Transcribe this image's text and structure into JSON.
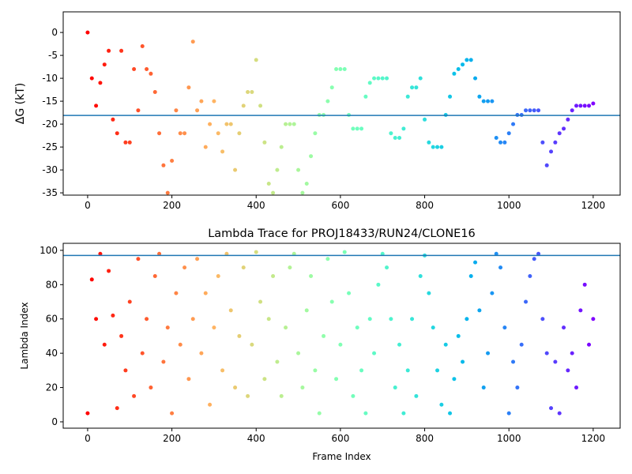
{
  "chart_data": [
    {
      "type": "scatter",
      "ylabel": "ΔG (kT)",
      "colormap": "rainbow_r",
      "xlim": [
        -58,
        1264
      ],
      "ylim": [
        -35.5,
        4.5
      ],
      "xticks": [
        0,
        200,
        400,
        600,
        800,
        1000,
        1200
      ],
      "yticks": [
        -35,
        -30,
        -25,
        -20,
        -15,
        -10,
        -5,
        0
      ],
      "hline": -18.1,
      "hline_color": "#1f77b4",
      "x": [
        0,
        10,
        20,
        30,
        40,
        50,
        60,
        70,
        80,
        90,
        100,
        110,
        120,
        130,
        140,
        150,
        160,
        170,
        180,
        190,
        200,
        210,
        220,
        230,
        240,
        250,
        260,
        270,
        280,
        290,
        300,
        310,
        320,
        330,
        340,
        350,
        360,
        370,
        380,
        390,
        400,
        410,
        420,
        430,
        440,
        450,
        460,
        470,
        480,
        490,
        500,
        510,
        520,
        530,
        540,
        550,
        560,
        570,
        580,
        590,
        600,
        610,
        620,
        630,
        640,
        650,
        660,
        670,
        680,
        690,
        700,
        710,
        720,
        730,
        740,
        750,
        760,
        770,
        780,
        790,
        800,
        810,
        820,
        830,
        840,
        850,
        860,
        870,
        880,
        890,
        900,
        910,
        920,
        930,
        940,
        950,
        960,
        970,
        980,
        990,
        1000,
        1010,
        1020,
        1030,
        1040,
        1050,
        1060,
        1070,
        1080,
        1090,
        1100,
        1110,
        1120,
        1130,
        1140,
        1150,
        1160,
        1170,
        1180,
        1190,
        1200
      ],
      "values": [
        0,
        -10,
        -16,
        -11,
        -7,
        -4,
        -19,
        -22,
        -4,
        -24,
        -24,
        -8,
        -17,
        -3,
        -8,
        -9,
        -13,
        -22,
        -29,
        -35,
        -28,
        -17,
        -22,
        -22,
        -12,
        -2,
        -17,
        -15,
        -25,
        -20,
        -15,
        -22,
        -26,
        -20,
        -20,
        -30,
        -22,
        -16,
        -13,
        -13,
        -6,
        -16,
        -24,
        -33,
        -35,
        -30,
        -25,
        -20,
        -20,
        -20,
        -30,
        -35,
        -33,
        -27,
        -22,
        -18,
        -18,
        -15,
        -12,
        -8,
        -8,
        -8,
        -18,
        -21,
        -21,
        -21,
        -14,
        -11,
        -10,
        -10,
        -10,
        -10,
        -22,
        -23,
        -23,
        -21,
        -14,
        -12,
        -12,
        -10,
        -19,
        -24,
        -25,
        -25,
        -25,
        -18,
        -14,
        -9,
        -8,
        -7,
        -6,
        -6,
        -10,
        -14,
        -15,
        -15,
        -15,
        -23,
        -24,
        -24,
        -22,
        -20,
        -18,
        -18,
        -17,
        -17,
        -17,
        -17,
        -24,
        -29,
        -26,
        -24,
        -22,
        -21,
        -19,
        -17,
        -16,
        -16,
        -16,
        -16,
        -15.5
      ]
    },
    {
      "type": "scatter",
      "title": "Lambda Trace for PROJ18433/RUN24/CLONE16",
      "xlabel": "Frame Index",
      "ylabel": "Lambda Index",
      "colormap": "rainbow_r",
      "xlim": [
        -58,
        1264
      ],
      "ylim": [
        -3.7,
        104.1
      ],
      "xticks": [
        0,
        200,
        400,
        600,
        800,
        1000,
        1200
      ],
      "yticks": [
        0,
        20,
        40,
        60,
        80,
        100
      ],
      "hline": 97,
      "hline_color": "#1f77b4",
      "x": [
        0,
        10,
        20,
        30,
        40,
        50,
        60,
        70,
        80,
        90,
        100,
        110,
        120,
        130,
        140,
        150,
        160,
        170,
        180,
        190,
        200,
        210,
        220,
        230,
        240,
        250,
        260,
        270,
        280,
        290,
        300,
        310,
        320,
        330,
        340,
        350,
        360,
        370,
        380,
        390,
        400,
        410,
        420,
        430,
        440,
        450,
        460,
        470,
        480,
        490,
        500,
        510,
        520,
        530,
        540,
        550,
        560,
        570,
        580,
        590,
        600,
        610,
        620,
        630,
        640,
        650,
        660,
        670,
        680,
        690,
        700,
        710,
        720,
        730,
        740,
        750,
        760,
        770,
        780,
        790,
        800,
        810,
        820,
        830,
        840,
        850,
        860,
        870,
        880,
        890,
        900,
        910,
        920,
        930,
        940,
        950,
        960,
        970,
        980,
        990,
        1000,
        1010,
        1020,
        1030,
        1040,
        1050,
        1060,
        1070,
        1080,
        1090,
        1100,
        1110,
        1120,
        1130,
        1140,
        1150,
        1160,
        1170,
        1180,
        1190,
        1200
      ],
      "values": [
        5,
        83,
        60,
        98,
        45,
        88,
        62,
        8,
        50,
        30,
        70,
        15,
        95,
        40,
        60,
        20,
        85,
        98,
        35,
        55,
        5,
        75,
        45,
        90,
        25,
        60,
        95,
        40,
        75,
        10,
        55,
        85,
        30,
        98,
        65,
        20,
        50,
        90,
        15,
        45,
        99,
        70,
        25,
        60,
        85,
        35,
        15,
        55,
        90,
        98,
        40,
        20,
        65,
        85,
        30,
        5,
        50,
        95,
        70,
        25,
        45,
        99,
        75,
        15,
        55,
        30,
        5,
        60,
        40,
        80,
        98,
        90,
        60,
        20,
        45,
        5,
        30,
        60,
        15,
        85,
        97,
        75,
        55,
        30,
        10,
        45,
        5,
        25,
        50,
        35,
        60,
        85,
        93,
        65,
        20,
        40,
        75,
        98,
        90,
        55,
        5,
        35,
        20,
        45,
        70,
        85,
        95,
        98,
        60,
        40,
        8,
        35,
        5,
        55,
        30,
        40,
        20,
        65,
        80,
        45,
        60
      ]
    }
  ]
}
